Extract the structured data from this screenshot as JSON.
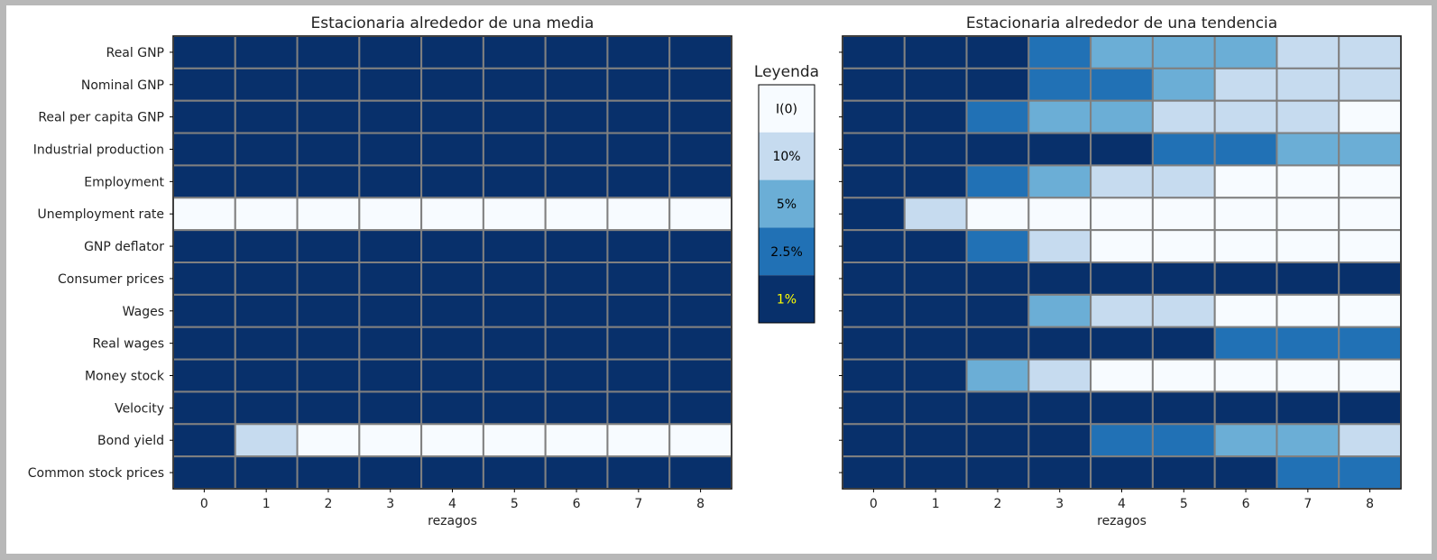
{
  "chart_data": [
    {
      "type": "heatmap",
      "title": "Estacionaria alrededor de una media",
      "xlabel": "rezagos",
      "ylabel": "",
      "x": [
        0,
        1,
        2,
        3,
        4,
        5,
        6,
        7,
        8
      ],
      "rows": [
        "Real GNP",
        "Nominal GNP",
        "Real per capita GNP",
        "Industrial production",
        "Employment",
        "Unemployment rate",
        "GNP deflator",
        "Consumer prices",
        "Wages",
        "Real wages",
        "Money stock",
        "Velocity",
        "Bond yield",
        "Common stock prices"
      ],
      "values": [
        [
          "1%",
          "1%",
          "1%",
          "1%",
          "1%",
          "1%",
          "1%",
          "1%",
          "1%"
        ],
        [
          "1%",
          "1%",
          "1%",
          "1%",
          "1%",
          "1%",
          "1%",
          "1%",
          "1%"
        ],
        [
          "1%",
          "1%",
          "1%",
          "1%",
          "1%",
          "1%",
          "1%",
          "1%",
          "1%"
        ],
        [
          "1%",
          "1%",
          "1%",
          "1%",
          "1%",
          "1%",
          "1%",
          "1%",
          "1%"
        ],
        [
          "1%",
          "1%",
          "1%",
          "1%",
          "1%",
          "1%",
          "1%",
          "1%",
          "1%"
        ],
        [
          "I(0)",
          "I(0)",
          "I(0)",
          "I(0)",
          "I(0)",
          "I(0)",
          "I(0)",
          "I(0)",
          "I(0)"
        ],
        [
          "1%",
          "1%",
          "1%",
          "1%",
          "1%",
          "1%",
          "1%",
          "1%",
          "1%"
        ],
        [
          "1%",
          "1%",
          "1%",
          "1%",
          "1%",
          "1%",
          "1%",
          "1%",
          "1%"
        ],
        [
          "1%",
          "1%",
          "1%",
          "1%",
          "1%",
          "1%",
          "1%",
          "1%",
          "1%"
        ],
        [
          "1%",
          "1%",
          "1%",
          "1%",
          "1%",
          "1%",
          "1%",
          "1%",
          "1%"
        ],
        [
          "1%",
          "1%",
          "1%",
          "1%",
          "1%",
          "1%",
          "1%",
          "1%",
          "1%"
        ],
        [
          "1%",
          "1%",
          "1%",
          "1%",
          "1%",
          "1%",
          "1%",
          "1%",
          "1%"
        ],
        [
          "1%",
          "10%",
          "I(0)",
          "I(0)",
          "I(0)",
          "I(0)",
          "I(0)",
          "I(0)",
          "I(0)"
        ],
        [
          "1%",
          "1%",
          "1%",
          "1%",
          "1%",
          "1%",
          "1%",
          "1%",
          "1%"
        ]
      ]
    },
    {
      "type": "heatmap",
      "title": "Estacionaria alrededor de una tendencia",
      "xlabel": "rezagos",
      "ylabel": "",
      "x": [
        0,
        1,
        2,
        3,
        4,
        5,
        6,
        7,
        8
      ],
      "rows": [
        "Real GNP",
        "Nominal GNP",
        "Real per capita GNP",
        "Industrial production",
        "Employment",
        "Unemployment rate",
        "GNP deflator",
        "Consumer prices",
        "Wages",
        "Real wages",
        "Money stock",
        "Velocity",
        "Bond yield",
        "Common stock prices"
      ],
      "values": [
        [
          "1%",
          "1%",
          "1%",
          "2.5%",
          "5%",
          "5%",
          "5%",
          "10%",
          "10%"
        ],
        [
          "1%",
          "1%",
          "1%",
          "2.5%",
          "2.5%",
          "5%",
          "10%",
          "10%",
          "10%"
        ],
        [
          "1%",
          "1%",
          "2.5%",
          "5%",
          "5%",
          "10%",
          "10%",
          "10%",
          "I(0)"
        ],
        [
          "1%",
          "1%",
          "1%",
          "1%",
          "1%",
          "2.5%",
          "2.5%",
          "5%",
          "5%"
        ],
        [
          "1%",
          "1%",
          "2.5%",
          "5%",
          "10%",
          "10%",
          "I(0)",
          "I(0)",
          "I(0)"
        ],
        [
          "1%",
          "10%",
          "I(0)",
          "I(0)",
          "I(0)",
          "I(0)",
          "I(0)",
          "I(0)",
          "I(0)"
        ],
        [
          "1%",
          "1%",
          "2.5%",
          "10%",
          "I(0)",
          "I(0)",
          "I(0)",
          "I(0)",
          "I(0)"
        ],
        [
          "1%",
          "1%",
          "1%",
          "1%",
          "1%",
          "1%",
          "1%",
          "1%",
          "1%"
        ],
        [
          "1%",
          "1%",
          "1%",
          "5%",
          "10%",
          "10%",
          "I(0)",
          "I(0)",
          "I(0)"
        ],
        [
          "1%",
          "1%",
          "1%",
          "1%",
          "1%",
          "1%",
          "2.5%",
          "2.5%",
          "2.5%"
        ],
        [
          "1%",
          "1%",
          "5%",
          "10%",
          "I(0)",
          "I(0)",
          "I(0)",
          "I(0)",
          "I(0)"
        ],
        [
          "1%",
          "1%",
          "1%",
          "1%",
          "1%",
          "1%",
          "1%",
          "1%",
          "1%"
        ],
        [
          "1%",
          "1%",
          "1%",
          "1%",
          "2.5%",
          "2.5%",
          "5%",
          "5%",
          "10%"
        ],
        [
          "1%",
          "1%",
          "1%",
          "1%",
          "1%",
          "1%",
          "1%",
          "2.5%",
          "2.5%"
        ]
      ]
    }
  ],
  "legend": {
    "title": "Leyenda",
    "items": [
      {
        "label": "I(0)",
        "color": "#f7fbff",
        "text_color": "#000000"
      },
      {
        "label": "10%",
        "color": "#c6dbef",
        "text_color": "#000000"
      },
      {
        "label": "5%",
        "color": "#6baed6",
        "text_color": "#000000"
      },
      {
        "label": "2.5%",
        "color": "#2171b5",
        "text_color": "#000000"
      },
      {
        "label": "1%",
        "color": "#08306b",
        "text_color": "#ffff00"
      }
    ]
  },
  "colors": {
    "cell_border": "#808080",
    "figure_background": "#ffffff",
    "outer_background": "#b8b8b8"
  }
}
